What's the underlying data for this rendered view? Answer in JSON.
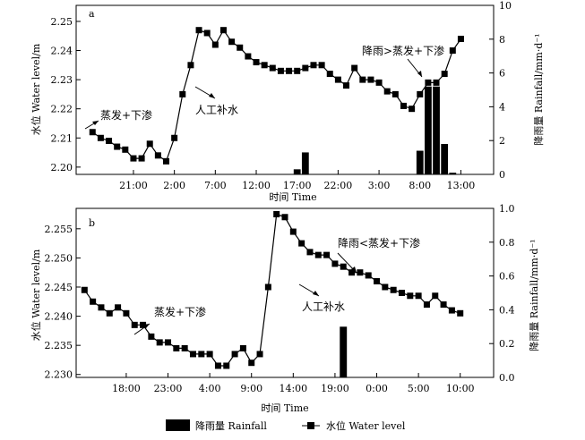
{
  "legend": {
    "rainfall": "降雨量 Rainfall",
    "water_level": "水位 Water level"
  },
  "chart_data": [
    {
      "panel": "a",
      "type": "line+bar",
      "xlabel": "时间 Time",
      "ylabel_left": "水位 Water level/m",
      "ylabel_right": "降雨量 Rainfall/mm·d⁻¹",
      "x_ticks": [
        {
          "label": "21:00",
          "x": 5
        },
        {
          "label": "2:00",
          "x": 10
        },
        {
          "label": "7:00",
          "x": 15
        },
        {
          "label": "12:00",
          "x": 20
        },
        {
          "label": "17:00",
          "x": 25
        },
        {
          "label": "22:00",
          "x": 30
        },
        {
          "label": "3:00",
          "x": 35
        },
        {
          "label": "8:00",
          "x": 40
        },
        {
          "label": "13:00",
          "x": 45
        }
      ],
      "xlim": [
        -2,
        49
      ],
      "y_left": {
        "ticks": [
          2.2,
          2.21,
          2.22,
          2.23,
          2.24,
          2.25
        ],
        "lim": [
          2.1975,
          2.2555
        ]
      },
      "y_right": {
        "ticks": [
          0,
          2,
          4,
          6,
          8,
          10
        ],
        "lim": [
          0,
          10
        ]
      },
      "series_level": {
        "name": "水位 Water level",
        "x": [
          0,
          1,
          2,
          3,
          4,
          5,
          6,
          7,
          8,
          9,
          10,
          11,
          12,
          13,
          14,
          15,
          16,
          17,
          18,
          19,
          20,
          21,
          22,
          23,
          24,
          25,
          26,
          27,
          28,
          29,
          30,
          31,
          32,
          33,
          34,
          35,
          36,
          37,
          38,
          39,
          40,
          41,
          42,
          43,
          44,
          45
        ],
        "y": [
          2.212,
          2.21,
          2.209,
          2.207,
          2.206,
          2.203,
          2.203,
          2.208,
          2.204,
          2.202,
          2.21,
          2.225,
          2.235,
          2.247,
          2.246,
          2.242,
          2.247,
          2.243,
          2.241,
          2.238,
          2.236,
          2.235,
          2.234,
          2.233,
          2.233,
          2.233,
          2.234,
          2.235,
          2.235,
          2.232,
          2.23,
          2.228,
          2.234,
          2.23,
          2.23,
          2.229,
          2.226,
          2.225,
          2.221,
          2.22,
          2.225,
          2.229,
          2.229,
          2.232,
          2.24,
          2.244
        ]
      },
      "series_rain": {
        "name": "降雨量 Rainfall",
        "x": [
          25,
          26,
          40,
          41,
          42,
          43,
          44
        ],
        "values": [
          0.3,
          1.3,
          1.4,
          5.2,
          5.2,
          1.8,
          0.1
        ]
      },
      "annotations": {
        "evap": "蒸发+下渗",
        "recharge": "人工补水",
        "rain_gt": "降雨>蒸发+下渗"
      }
    },
    {
      "panel": "b",
      "type": "line+bar",
      "xlabel": "时间 Time",
      "ylabel_left": "水位 Water level/m",
      "ylabel_right": "降雨量 Rainfall/mm·d⁻¹",
      "x_ticks": [
        {
          "label": "18:00",
          "x": 5
        },
        {
          "label": "23:00",
          "x": 10
        },
        {
          "label": "4:00",
          "x": 15
        },
        {
          "label": "9:00",
          "x": 20
        },
        {
          "label": "14:00",
          "x": 25
        },
        {
          "label": "19:00",
          "x": 30
        },
        {
          "label": "0:00",
          "x": 35
        },
        {
          "label": "5:00",
          "x": 40
        },
        {
          "label": "10:00",
          "x": 45
        }
      ],
      "xlim": [
        -1,
        49
      ],
      "y_left": {
        "ticks": [
          2.23,
          2.235,
          2.24,
          2.245,
          2.25,
          2.255
        ],
        "lim": [
          2.2295,
          2.2585
        ]
      },
      "y_right": {
        "ticks": [
          0,
          0.2,
          0.4,
          0.6,
          0.8,
          1.0
        ],
        "lim": [
          0,
          1.0
        ]
      },
      "series_level": {
        "name": "水位 Water level",
        "x": [
          0,
          1,
          2,
          3,
          4,
          5,
          6,
          7,
          8,
          9,
          10,
          11,
          12,
          13,
          14,
          15,
          16,
          17,
          18,
          19,
          20,
          21,
          22,
          23,
          24,
          25,
          26,
          27,
          28,
          29,
          30,
          31,
          32,
          33,
          34,
          35,
          36,
          37,
          38,
          39,
          40,
          41,
          42,
          43,
          44,
          45
        ],
        "y": [
          2.2445,
          2.2425,
          2.2415,
          2.2405,
          2.2415,
          2.2405,
          2.2385,
          2.2385,
          2.2365,
          2.2355,
          2.2355,
          2.2345,
          2.2345,
          2.2335,
          2.2335,
          2.2335,
          2.2315,
          2.2315,
          2.2335,
          2.2345,
          2.232,
          2.2335,
          2.245,
          2.2575,
          2.257,
          2.2545,
          2.2525,
          2.251,
          2.2505,
          2.2505,
          2.249,
          2.2485,
          2.2475,
          2.2475,
          2.247,
          2.246,
          2.245,
          2.2445,
          2.244,
          2.2435,
          2.2435,
          2.242,
          2.2435,
          2.242,
          2.241,
          2.2405
        ]
      },
      "series_rain": {
        "name": "降雨量 Rainfall",
        "x": [
          31
        ],
        "values": [
          0.3
        ]
      },
      "annotations": {
        "evap": "蒸发+下渗",
        "recharge": "人工补水",
        "rain_lt": "降雨<蒸发+下渗"
      }
    }
  ]
}
